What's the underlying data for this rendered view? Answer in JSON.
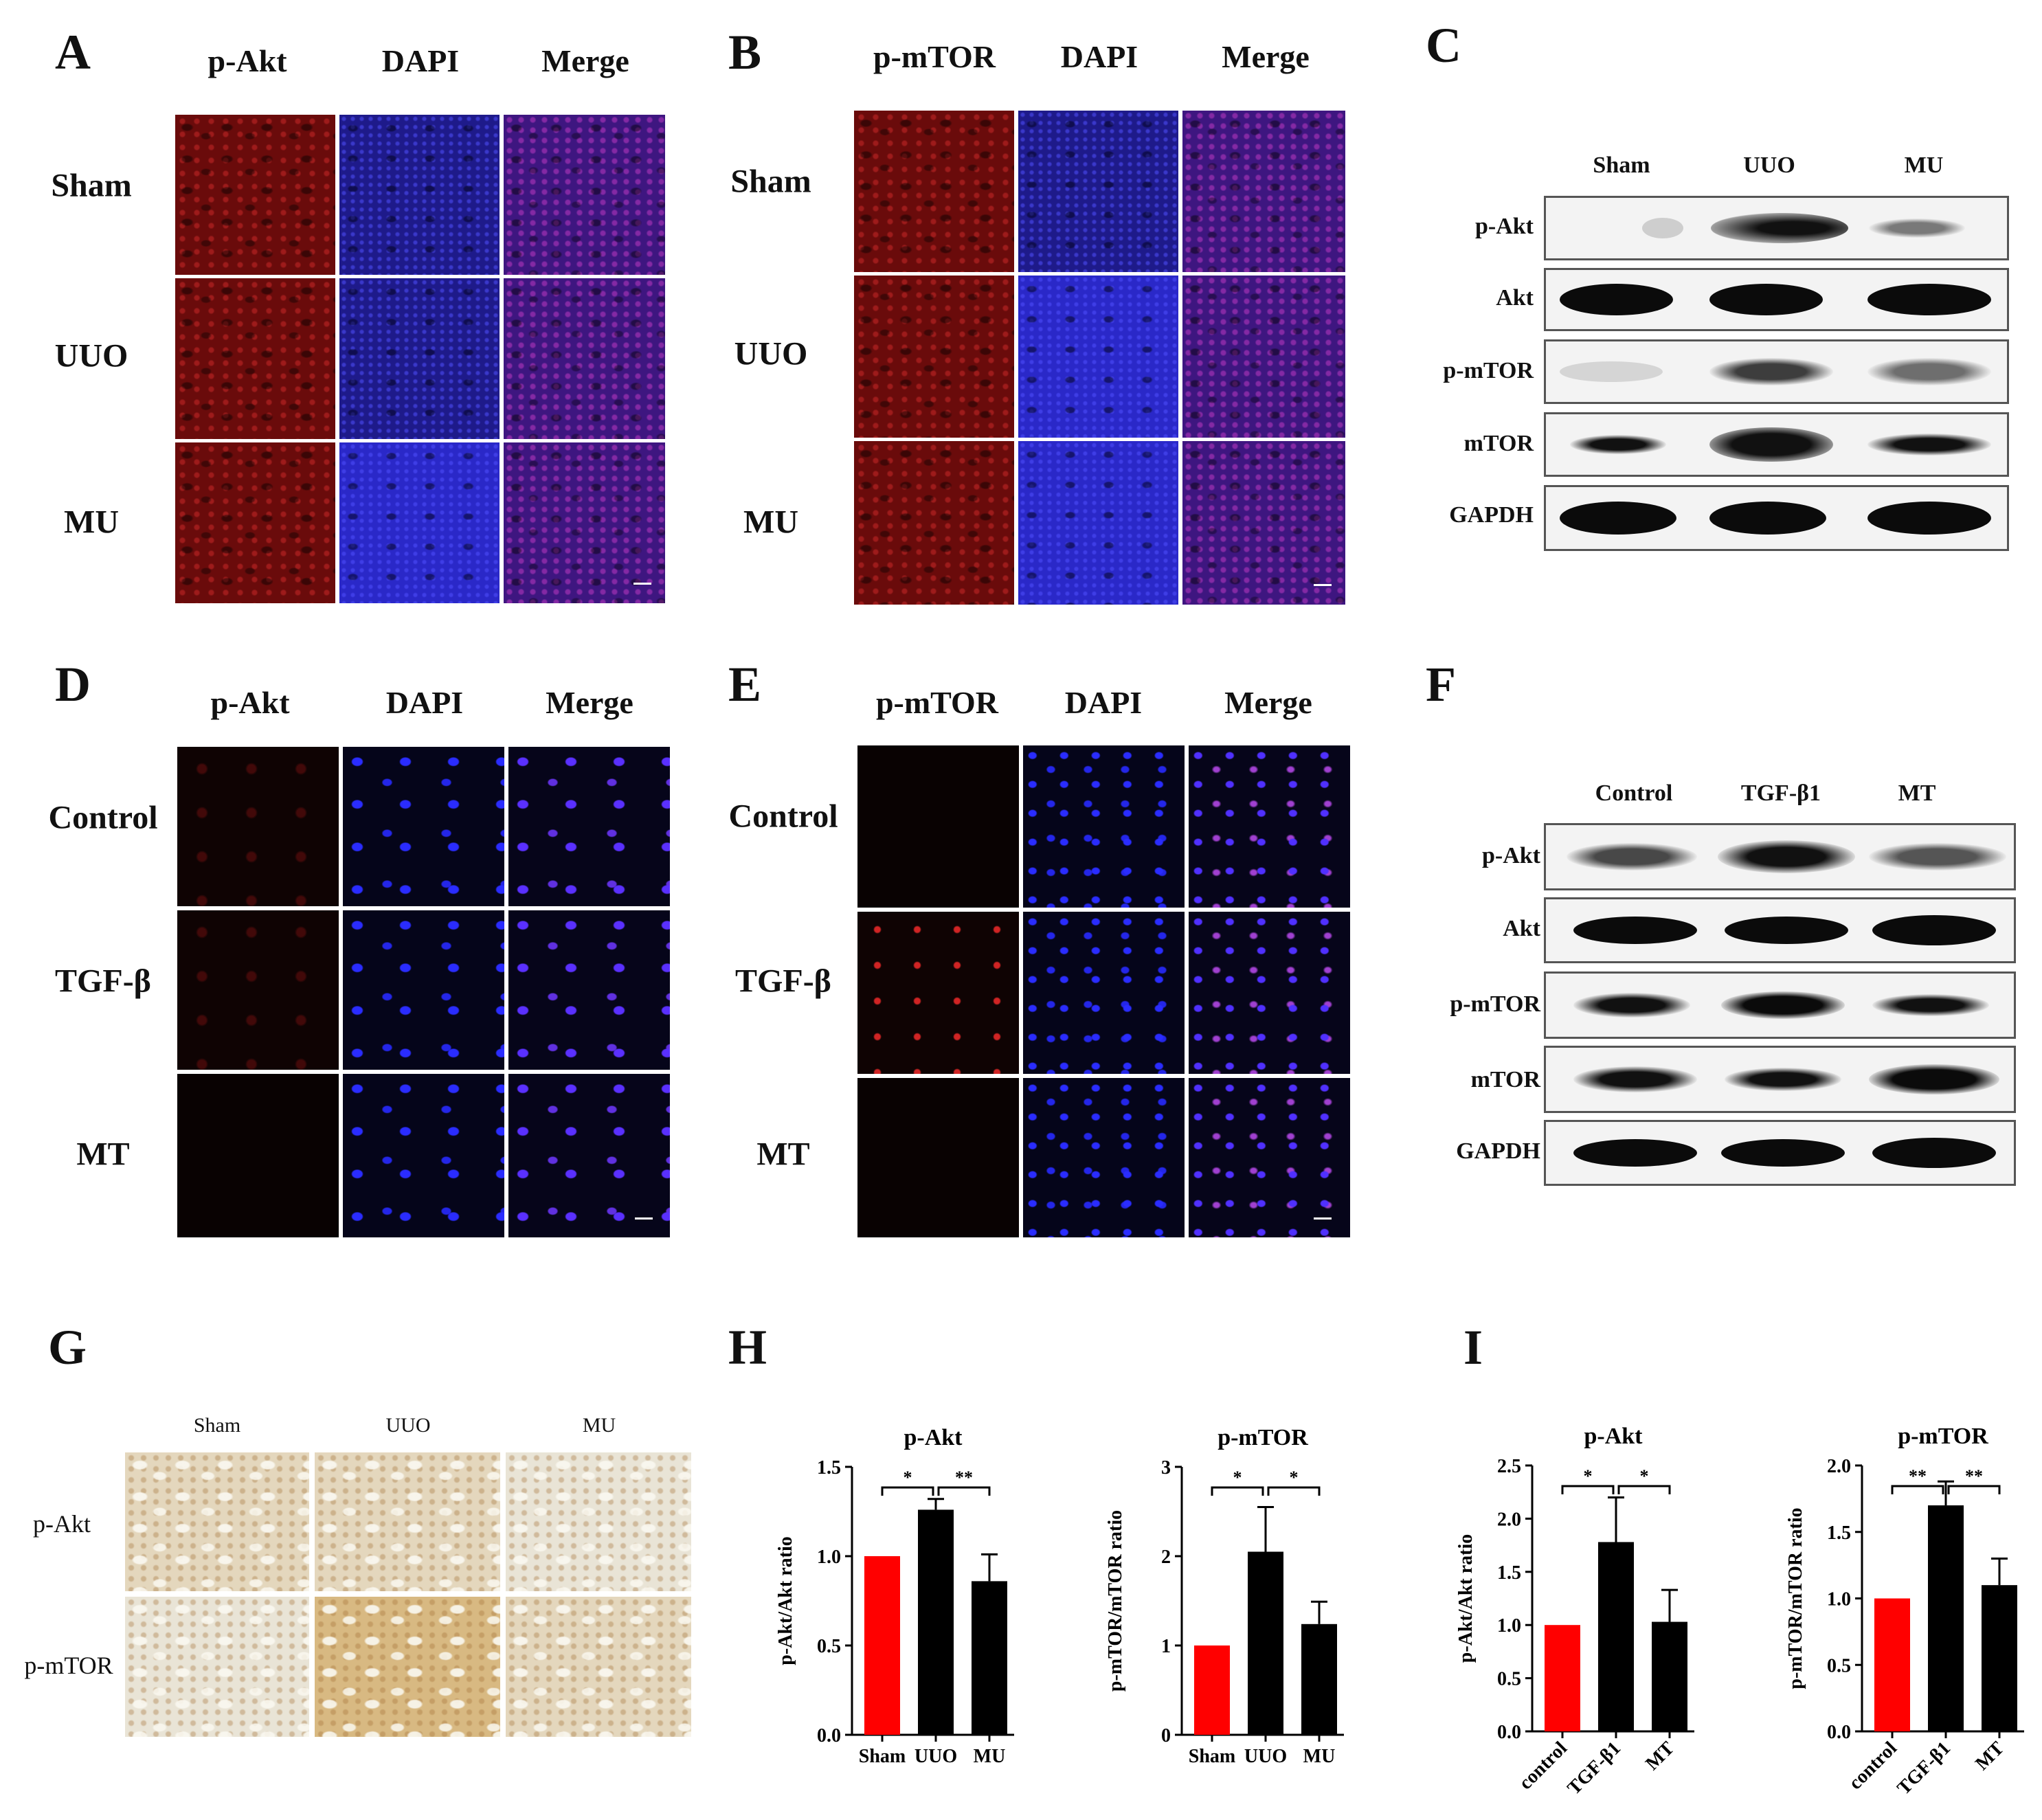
{
  "panels": {
    "A": {
      "letter": "A",
      "cols": [
        "p-Akt",
        "DAPI",
        "Merge"
      ],
      "rows": [
        "Sham",
        "UUO",
        "MU"
      ]
    },
    "B": {
      "letter": "B",
      "cols": [
        "p-mTOR",
        "DAPI",
        "Merge"
      ],
      "rows": [
        "Sham",
        "UUO",
        "MU"
      ]
    },
    "C": {
      "letter": "C",
      "lanes": [
        "Sham",
        "UUO",
        "MU"
      ],
      "rows": [
        "p-Akt",
        "Akt",
        "p-mTOR",
        "mTOR",
        "GAPDH"
      ]
    },
    "D": {
      "letter": "D",
      "cols": [
        "p-Akt",
        "DAPI",
        "Merge"
      ],
      "rows": [
        "Control",
        "TGF-β",
        "MT"
      ]
    },
    "E": {
      "letter": "E",
      "cols": [
        "p-mTOR",
        "DAPI",
        "Merge"
      ],
      "rows": [
        "Control",
        "TGF-β",
        "MT"
      ]
    },
    "F": {
      "letter": "F",
      "lanes": [
        "Control",
        "TGF-β1",
        "MT"
      ],
      "rows": [
        "p-Akt",
        "Akt",
        "p-mTOR",
        "mTOR",
        "GAPDH"
      ]
    },
    "G": {
      "letter": "G",
      "cols": [
        "Sham",
        "UUO",
        "MU"
      ],
      "rows": [
        "p-Akt",
        "p-mTOR"
      ]
    },
    "H": {
      "letter": "H"
    },
    "I": {
      "letter": "I"
    }
  },
  "chart_data": [
    {
      "type": "bar",
      "title": "p-Akt",
      "ylabel": "p-Akt/Akt ratio",
      "categories": [
        "Sham",
        "UUO",
        "MU"
      ],
      "values": [
        1.0,
        1.26,
        0.86
      ],
      "errors": [
        0,
        0.06,
        0.15
      ],
      "ylim": [
        0,
        1.5
      ],
      "yticks": [
        "0.0",
        "0.5",
        "1.0",
        "1.5"
      ],
      "bar_colors": [
        "#ff0000",
        "#000000",
        "#000000"
      ],
      "significance": [
        {
          "from": 0,
          "to": 1,
          "label": "*"
        },
        {
          "from": 1,
          "to": 2,
          "label": "**"
        }
      ]
    },
    {
      "type": "bar",
      "title": "p-mTOR",
      "ylabel": "p-mTOR/mTOR ratio",
      "categories": [
        "Sham",
        "UUO",
        "MU"
      ],
      "values": [
        1.0,
        2.05,
        1.24
      ],
      "errors": [
        0,
        0.5,
        0.25
      ],
      "ylim": [
        0,
        3
      ],
      "yticks": [
        "0",
        "1",
        "2",
        "3"
      ],
      "bar_colors": [
        "#ff0000",
        "#000000",
        "#000000"
      ],
      "significance": [
        {
          "from": 0,
          "to": 1,
          "label": "*"
        },
        {
          "from": 1,
          "to": 2,
          "label": "*"
        }
      ]
    },
    {
      "type": "bar",
      "title": "p-Akt",
      "ylabel": "p-Akt/Akt ratio",
      "categories": [
        "control",
        "TGF-β1",
        "MT"
      ],
      "values": [
        1.0,
        1.78,
        1.03
      ],
      "errors": [
        0,
        0.42,
        0.3
      ],
      "ylim": [
        0,
        2.5
      ],
      "yticks": [
        "0.0",
        "0.5",
        "1.0",
        "1.5",
        "2.0",
        "2.5"
      ],
      "bar_colors": [
        "#ff0000",
        "#000000",
        "#000000"
      ],
      "significance": [
        {
          "from": 0,
          "to": 1,
          "label": "*"
        },
        {
          "from": 1,
          "to": 2,
          "label": "*"
        }
      ]
    },
    {
      "type": "bar",
      "title": "p-mTOR",
      "ylabel": "p-mTOR/mTOR ratio",
      "categories": [
        "control",
        "TGF-β1",
        "MT"
      ],
      "values": [
        1.0,
        1.7,
        1.1
      ],
      "errors": [
        0,
        0.18,
        0.2
      ],
      "ylim": [
        0,
        2.0
      ],
      "yticks": [
        "0.0",
        "0.5",
        "1.0",
        "1.5",
        "2.0"
      ],
      "bar_colors": [
        "#ff0000",
        "#000000",
        "#000000"
      ],
      "significance": [
        {
          "from": 0,
          "to": 1,
          "label": "**"
        },
        {
          "from": 1,
          "to": 2,
          "label": "**"
        }
      ]
    }
  ]
}
